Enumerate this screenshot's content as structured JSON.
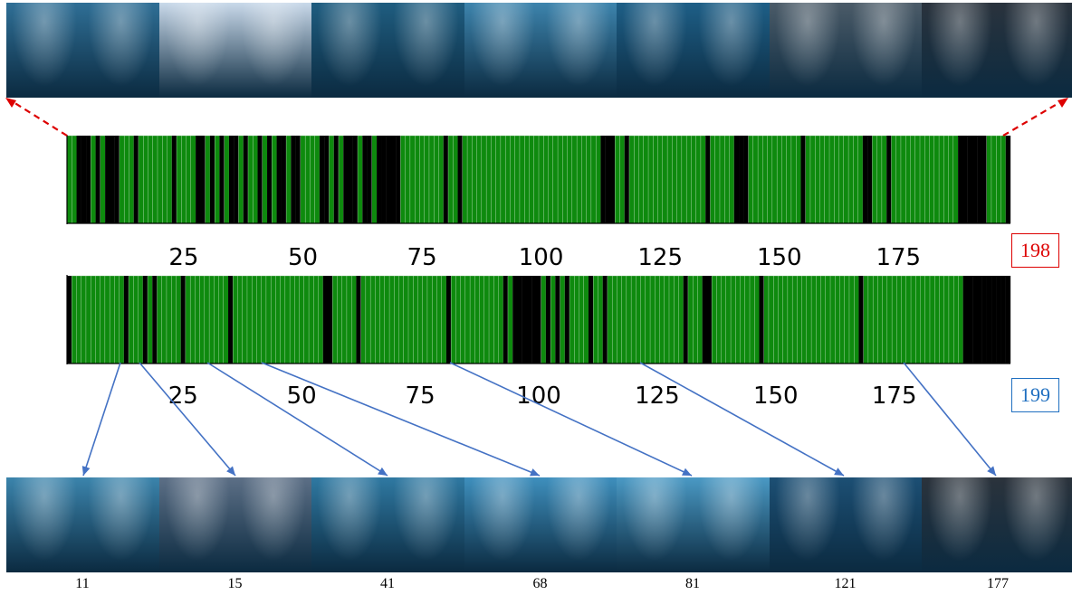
{
  "chart_data": [
    {
      "type": "bar",
      "id_label": "198",
      "xlim": [
        1,
        198
      ],
      "xticks": [
        "25",
        "50",
        "75",
        "100",
        "125",
        "150",
        "175"
      ],
      "black_indices": [
        3,
        4,
        5,
        7,
        9,
        10,
        11,
        15,
        23,
        28,
        29,
        31,
        33,
        35,
        36,
        38,
        41,
        43,
        45,
        46,
        48,
        49,
        54,
        55,
        57,
        59,
        60,
        61,
        63,
        64,
        66,
        67,
        68,
        69,
        70,
        80,
        83,
        113,
        114,
        115,
        118,
        135,
        141,
        142,
        143,
        155,
        168,
        169,
        173,
        188,
        189,
        190,
        191,
        192,
        193,
        198
      ]
    },
    {
      "type": "bar",
      "id_label": "199",
      "xlim": [
        1,
        199
      ],
      "xticks": [
        "25",
        "50",
        "75",
        "100",
        "125",
        "150",
        "175"
      ],
      "black_indices": [
        1,
        13,
        17,
        19,
        25,
        35,
        55,
        56,
        62,
        81,
        93,
        95,
        96,
        97,
        98,
        99,
        100,
        102,
        104,
        106,
        111,
        114,
        131,
        135,
        136,
        147,
        168,
        190,
        191,
        192,
        193,
        194,
        195,
        196,
        197,
        198,
        199
      ]
    }
  ],
  "top_strip": {
    "colors": [
      "#2f6f96",
      "#c9d9ea",
      "#1f5d80",
      "#3d84ad",
      "#1e5f87",
      "#4b5b68",
      "#2a333d"
    ]
  },
  "bottom_strip": {
    "labels": [
      "11",
      "15",
      "41",
      "68",
      "81",
      "121",
      "177"
    ],
    "colors": [
      "#3b84ac",
      "#5c6f86",
      "#2f79a2",
      "#3e8fbd",
      "#4a99c4",
      "#1c4f74",
      "#2b333c"
    ]
  },
  "colors": {
    "bar_green": "#0e8a0e",
    "bar_black": "#000000",
    "red": "#dd0000",
    "blue": "#1f6fc0",
    "arrow_blue": "#4472c4"
  }
}
